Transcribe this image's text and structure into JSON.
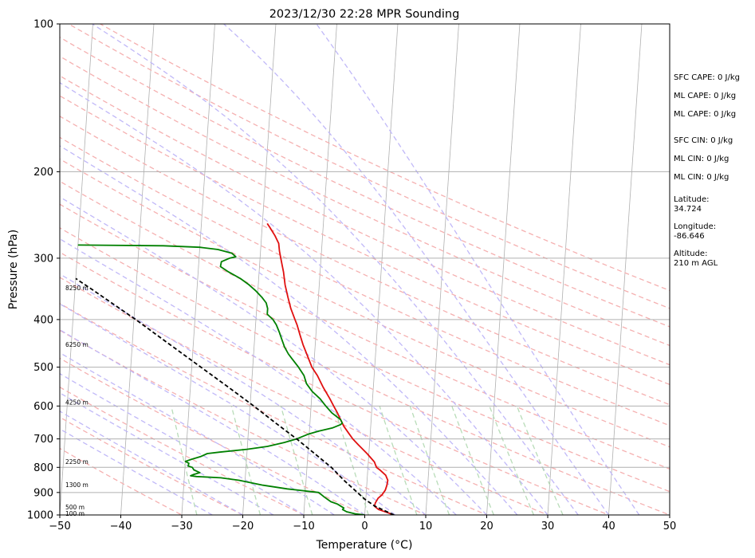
{
  "chart_data": {
    "type": "line",
    "title": "2023/12/30 22:28 MPR Sounding",
    "xlabel": "Temperature (°C)",
    "ylabel": "Pressure (hPa)",
    "xlim": [
      -50,
      50
    ],
    "ylim": [
      1000,
      100
    ],
    "y_scale": "log",
    "skew": "skew-T log-P",
    "x_ticks": [
      "−50",
      "−40",
      "−30",
      "−20",
      "−10",
      "0",
      "10",
      "20",
      "30",
      "40",
      "50"
    ],
    "y_ticks": [
      "100",
      "200",
      "300",
      "400",
      "500",
      "600",
      "700",
      "800",
      "900",
      "1000"
    ],
    "height_labels": [
      {
        "label": "100 m",
        "p": 995
      },
      {
        "label": "500 m",
        "p": 965
      },
      {
        "label": "1300 m",
        "p": 870
      },
      {
        "label": "2250 m",
        "p": 780
      },
      {
        "label": "4250 m",
        "p": 590
      },
      {
        "label": "6250 m",
        "p": 450
      },
      {
        "label": "8250 m",
        "p": 345
      }
    ],
    "series": [
      {
        "color": "#e01010",
        "points": [
          [
            1000,
            4.7
          ],
          [
            990,
            3.8
          ],
          [
            975,
            2.2
          ],
          [
            960,
            1.5
          ],
          [
            945,
            1.6
          ],
          [
            925,
            2.0
          ],
          [
            910,
            2.6
          ],
          [
            890,
            3.1
          ],
          [
            870,
            3.3
          ],
          [
            850,
            3.4
          ],
          [
            830,
            3.0
          ],
          [
            810,
            2.0
          ],
          [
            800,
            1.4
          ],
          [
            780,
            1.0
          ],
          [
            750,
            -0.3
          ],
          [
            720,
            -1.8
          ],
          [
            700,
            -2.8
          ],
          [
            680,
            -3.6
          ],
          [
            660,
            -4.4
          ],
          [
            640,
            -5.0
          ],
          [
            620,
            -5.6
          ],
          [
            600,
            -6.3
          ],
          [
            580,
            -7.0
          ],
          [
            550,
            -8.2
          ],
          [
            520,
            -9.3
          ],
          [
            500,
            -10.3
          ],
          [
            470,
            -11.3
          ],
          [
            450,
            -12.0
          ],
          [
            430,
            -12.6
          ],
          [
            410,
            -13.2
          ],
          [
            400,
            -13.6
          ],
          [
            380,
            -14.4
          ],
          [
            360,
            -15.0
          ],
          [
            340,
            -15.6
          ],
          [
            320,
            -16.0
          ],
          [
            310,
            -16.3
          ],
          [
            300,
            -16.6
          ],
          [
            290,
            -16.9
          ],
          [
            280,
            -17.1
          ],
          [
            270,
            -17.8
          ],
          [
            260,
            -18.7
          ],
          [
            255,
            -19.2
          ]
        ]
      },
      {
        "color": "#008000",
        "points": [
          [
            1000,
            0.0
          ],
          [
            995,
            -1.5
          ],
          [
            985,
            -3.0
          ],
          [
            975,
            -3.7
          ],
          [
            968,
            -3.5
          ],
          [
            950,
            -4.6
          ],
          [
            940,
            -5.7
          ],
          [
            920,
            -6.8
          ],
          [
            900,
            -7.8
          ],
          [
            885,
            -13.0
          ],
          [
            870,
            -17.0
          ],
          [
            850,
            -21.0
          ],
          [
            840,
            -24.0
          ],
          [
            835,
            -28.0
          ],
          [
            832,
            -29.0
          ],
          [
            827,
            -28.5
          ],
          [
            820,
            -27.5
          ],
          [
            810,
            -28.5
          ],
          [
            800,
            -28.8
          ],
          [
            795,
            -29.5
          ],
          [
            785,
            -29.4
          ],
          [
            778,
            -30.0
          ],
          [
            770,
            -29.0
          ],
          [
            760,
            -27.5
          ],
          [
            750,
            -26.5
          ],
          [
            745,
            -24.5
          ],
          [
            735,
            -20.0
          ],
          [
            725,
            -16.7
          ],
          [
            712,
            -14.0
          ],
          [
            700,
            -12.0
          ],
          [
            685,
            -10.2
          ],
          [
            675,
            -8.5
          ],
          [
            665,
            -6.3
          ],
          [
            655,
            -5.0
          ],
          [
            650,
            -4.7
          ],
          [
            640,
            -5.0
          ],
          [
            620,
            -6.5
          ],
          [
            600,
            -7.6
          ],
          [
            580,
            -8.6
          ],
          [
            560,
            -10.0
          ],
          [
            540,
            -11.0
          ],
          [
            520,
            -11.5
          ],
          [
            500,
            -12.5
          ],
          [
            480,
            -13.7
          ],
          [
            470,
            -14.3
          ],
          [
            455,
            -15.0
          ],
          [
            440,
            -15.5
          ],
          [
            425,
            -16.0
          ],
          [
            410,
            -16.6
          ],
          [
            400,
            -17.2
          ],
          [
            390,
            -18.2
          ],
          [
            380,
            -18.2
          ],
          [
            370,
            -18.5
          ],
          [
            360,
            -19.3
          ],
          [
            350,
            -20.3
          ],
          [
            340,
            -21.5
          ],
          [
            330,
            -23.0
          ],
          [
            320,
            -25.0
          ],
          [
            312,
            -26.4
          ],
          [
            305,
            -26.3
          ],
          [
            300,
            -25.0
          ],
          [
            298,
            -24.0
          ],
          [
            293,
            -24.7
          ],
          [
            288,
            -27.0
          ],
          [
            285,
            -30.0
          ],
          [
            283,
            -36.0
          ],
          [
            282,
            -50.0
          ]
        ]
      },
      {
        "color": "#000000",
        "style": "dashed",
        "points": [
          [
            1000,
            4.8
          ],
          [
            960,
            1.6
          ],
          [
            930,
            -0.1
          ],
          [
            850,
            -3.8
          ],
          [
            800,
            -6.0
          ],
          [
            750,
            -8.9
          ],
          [
            700,
            -12.0
          ],
          [
            650,
            -15.6
          ],
          [
            600,
            -19.4
          ],
          [
            550,
            -23.7
          ],
          [
            500,
            -28.5
          ],
          [
            450,
            -33.8
          ],
          [
            400,
            -39.7
          ],
          [
            350,
            -46.8
          ],
          [
            330,
            -50.0
          ]
        ]
      }
    ],
    "annotations": [
      "SFC CAPE: 0 J/kg",
      "ML CAPE: 0 J/kg",
      "ML CAPE: 0 J/kg",
      "SFC CIN: 0 J/kg",
      "ML CIN: 0 J/kg",
      "ML CIN: 0 J/kg",
      "Latitude:\n34.724",
      "Longitude:\n-86.646",
      "Altitude:\n210 m AGL"
    ],
    "grid": true,
    "background_lines": {
      "isotherm_color": "#b0b0b0",
      "dry_adiabat_color": "#f5b0b0",
      "moist_adiabat_color": "#c0b8f8",
      "mixing_ratio_color": "#b8dcb8"
    }
  }
}
